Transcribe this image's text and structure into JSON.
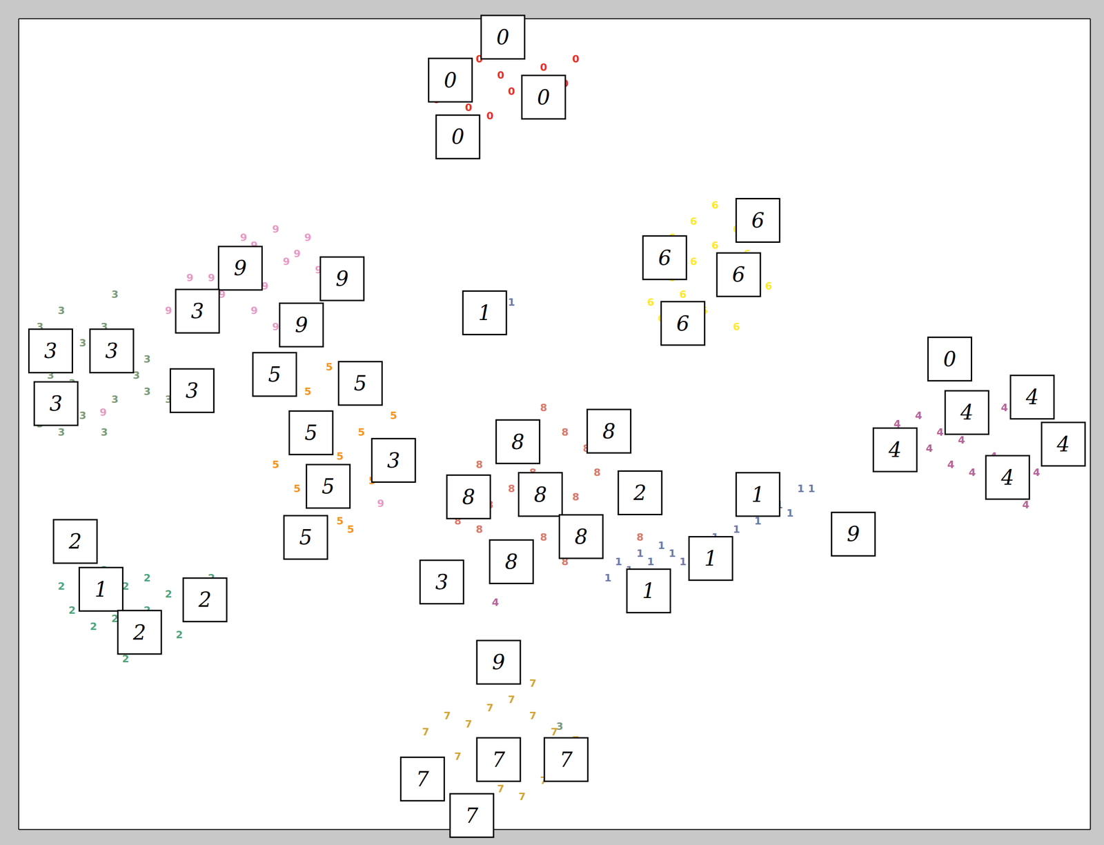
{
  "chart_data": {
    "type": "scatter",
    "marker": "text",
    "tick_labels": false,
    "grid": false,
    "xlim": [
      0,
      100
    ],
    "ylim": [
      0,
      100
    ],
    "xticks": [],
    "yticks": [],
    "series": [
      {
        "name": "0",
        "color": "#e8312a",
        "x": [
          41,
          43,
          45,
          47,
          49,
          51,
          39,
          42,
          44,
          46,
          48,
          50,
          40,
          46,
          52,
          44
        ],
        "y": [
          92,
          95,
          93,
          96,
          94,
          92,
          90,
          89,
          88,
          91,
          89,
          90,
          94,
          98,
          95,
          96
        ]
      },
      {
        "name": "1",
        "color": "#6b7ba8",
        "x": [
          55,
          57,
          59,
          61,
          63,
          65,
          67,
          69,
          71,
          73,
          56,
          58,
          60,
          62,
          64,
          72,
          74,
          45,
          46
        ],
        "y": [
          31,
          32,
          33,
          34,
          35,
          36,
          37,
          38,
          40,
          42,
          33,
          34,
          35,
          33,
          34,
          39,
          42,
          66,
          65
        ]
      },
      {
        "name": "2",
        "color": "#4fa57f",
        "x": [
          4,
          6,
          8,
          10,
          12,
          14,
          16,
          18,
          5,
          7,
          9,
          11,
          13,
          15,
          17,
          19,
          10,
          12
        ],
        "y": [
          30,
          28,
          32,
          30,
          31,
          29,
          30,
          31,
          27,
          25,
          26,
          23,
          22,
          24,
          26,
          28,
          21,
          27
        ]
      },
      {
        "name": "3",
        "color": "#7b9a78",
        "x": [
          2,
          4,
          6,
          8,
          10,
          12,
          3,
          5,
          7,
          9,
          11,
          2,
          4,
          6,
          8,
          12,
          14,
          9,
          50.5,
          37.7
        ],
        "y": [
          62,
          64,
          60,
          62,
          61,
          58,
          56,
          55,
          57,
          53,
          56,
          50,
          49,
          51,
          49,
          54,
          53,
          66,
          12.7,
          32.6
        ]
      },
      {
        "name": "4",
        "color": "#b5649a",
        "x": [
          82,
          84,
          86,
          88,
          90,
          92,
          94,
          96,
          98,
          83,
          85,
          87,
          89,
          91,
          93,
          95,
          97,
          94,
          44.5
        ],
        "y": [
          50,
          51,
          49,
          48,
          50,
          52,
          53,
          51,
          49,
          46,
          47,
          45,
          44,
          46,
          42,
          44,
          47,
          40,
          28
        ]
      },
      {
        "name": "5",
        "color": "#f7941d",
        "x": [
          25,
          27,
          29,
          31,
          33,
          35,
          26,
          28,
          30,
          32,
          34,
          24,
          26,
          28,
          30,
          33,
          31
        ],
        "y": [
          56,
          54,
          57,
          53,
          55,
          51,
          50,
          48,
          46,
          49,
          47,
          45,
          42,
          40,
          38,
          43,
          37
        ]
      },
      {
        "name": "6",
        "color": "#ffe92b",
        "x": [
          59,
          61,
          63,
          65,
          67,
          69,
          60,
          62,
          64,
          66,
          68,
          70,
          63,
          65,
          61,
          67
        ],
        "y": [
          65,
          68,
          70,
          72,
          74,
          76,
          63,
          66,
          64,
          69,
          71,
          67,
          75,
          77,
          73,
          62
        ]
      },
      {
        "name": "7",
        "color": "#d4a537",
        "x": [
          38,
          40,
          42,
          44,
          46,
          48,
          50,
          52,
          37,
          39,
          41,
          43,
          45,
          47,
          49,
          51,
          46,
          48
        ],
        "y": [
          12,
          14,
          13,
          15,
          16,
          14,
          12,
          11,
          8,
          6,
          9,
          7,
          5,
          4,
          6,
          7,
          19,
          18
        ]
      },
      {
        "name": "8",
        "color": "#d97a6c",
        "x": [
          47,
          49,
          51,
          53,
          55,
          43,
          45,
          44,
          46,
          48,
          50,
          52,
          54,
          43,
          45,
          49,
          51,
          58,
          41
        ],
        "y": [
          50,
          52,
          49,
          47,
          48,
          45,
          47,
          40,
          42,
          44,
          43,
          41,
          44,
          37,
          34,
          36,
          33,
          36,
          38
        ]
      },
      {
        "name": "9",
        "color": "#e89ac6",
        "x": [
          18,
          20,
          22,
          24,
          26,
          28,
          19,
          21,
          23,
          25,
          27,
          29,
          22,
          24,
          16,
          14,
          26,
          33.8,
          76.7,
          7.9
        ],
        "y": [
          68,
          70,
          72,
          74,
          71,
          69,
          66,
          73,
          67,
          70,
          73,
          66,
          64,
          62,
          68,
          64,
          61,
          40.2,
          38.5,
          51.4
        ]
      }
    ],
    "annotations": [
      {
        "x": 45.2,
        "y": 97.7,
        "text": "0"
      },
      {
        "x": 40.3,
        "y": 92.4,
        "text": "0"
      },
      {
        "x": 49.0,
        "y": 90.3,
        "text": "0"
      },
      {
        "x": 41.0,
        "y": 85.4,
        "text": "0"
      },
      {
        "x": 69.0,
        "y": 75.1,
        "text": "6"
      },
      {
        "x": 60.3,
        "y": 70.5,
        "text": "6"
      },
      {
        "x": 67.2,
        "y": 68.4,
        "text": "6"
      },
      {
        "x": 62.0,
        "y": 62.4,
        "text": "6"
      },
      {
        "x": 20.7,
        "y": 69.2,
        "text": "9"
      },
      {
        "x": 30.2,
        "y": 67.9,
        "text": "9"
      },
      {
        "x": 26.4,
        "y": 62.2,
        "text": "9"
      },
      {
        "x": 16.7,
        "y": 63.9,
        "text": "3"
      },
      {
        "x": 43.5,
        "y": 63.7,
        "text": "1"
      },
      {
        "x": 3.0,
        "y": 59.0,
        "text": "3"
      },
      {
        "x": 8.7,
        "y": 59.0,
        "text": "3"
      },
      {
        "x": 3.5,
        "y": 52.5,
        "text": "3"
      },
      {
        "x": 16.2,
        "y": 54.1,
        "text": "3"
      },
      {
        "x": 23.9,
        "y": 56.1,
        "text": "5"
      },
      {
        "x": 31.9,
        "y": 55.0,
        "text": "5"
      },
      {
        "x": 27.3,
        "y": 48.9,
        "text": "5"
      },
      {
        "x": 35.0,
        "y": 45.5,
        "text": "3"
      },
      {
        "x": 28.9,
        "y": 42.3,
        "text": "5"
      },
      {
        "x": 26.8,
        "y": 36.0,
        "text": "5"
      },
      {
        "x": 5.3,
        "y": 35.5,
        "text": "2"
      },
      {
        "x": 7.7,
        "y": 29.6,
        "text": "1"
      },
      {
        "x": 17.4,
        "y": 28.3,
        "text": "2"
      },
      {
        "x": 11.3,
        "y": 24.3,
        "text": "2"
      },
      {
        "x": 46.6,
        "y": 47.8,
        "text": "8"
      },
      {
        "x": 55.1,
        "y": 49.1,
        "text": "8"
      },
      {
        "x": 42.0,
        "y": 41.0,
        "text": "8"
      },
      {
        "x": 48.7,
        "y": 41.3,
        "text": "8"
      },
      {
        "x": 52.5,
        "y": 36.1,
        "text": "8"
      },
      {
        "x": 46.0,
        "y": 33.0,
        "text": "8"
      },
      {
        "x": 58.0,
        "y": 41.5,
        "text": "2"
      },
      {
        "x": 39.5,
        "y": 30.5,
        "text": "3"
      },
      {
        "x": 69.0,
        "y": 41.3,
        "text": "1"
      },
      {
        "x": 64.6,
        "y": 33.4,
        "text": "1"
      },
      {
        "x": 58.8,
        "y": 29.4,
        "text": "1"
      },
      {
        "x": 77.9,
        "y": 36.4,
        "text": "9"
      },
      {
        "x": 86.9,
        "y": 58.0,
        "text": "0"
      },
      {
        "x": 88.5,
        "y": 51.4,
        "text": "4"
      },
      {
        "x": 94.6,
        "y": 53.3,
        "text": "4"
      },
      {
        "x": 81.8,
        "y": 46.8,
        "text": "4"
      },
      {
        "x": 97.5,
        "y": 47.5,
        "text": "4"
      },
      {
        "x": 92.3,
        "y": 43.4,
        "text": "4"
      },
      {
        "x": 44.8,
        "y": 20.6,
        "text": "9"
      },
      {
        "x": 37.7,
        "y": 6.2,
        "text": "7"
      },
      {
        "x": 44.8,
        "y": 8.6,
        "text": "7"
      },
      {
        "x": 51.1,
        "y": 8.6,
        "text": "7"
      },
      {
        "x": 42.3,
        "y": 1.7,
        "text": "7"
      }
    ]
  }
}
